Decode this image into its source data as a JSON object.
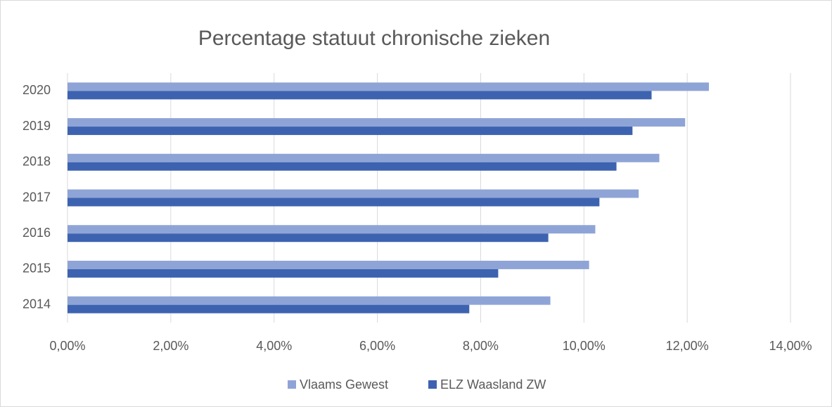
{
  "chart_data": {
    "type": "bar",
    "orientation": "horizontal",
    "title": "Percentage statuut chronische zieken",
    "categories": [
      "2014",
      "2015",
      "2016",
      "2017",
      "2018",
      "2019",
      "2020"
    ],
    "series": [
      {
        "name": "Vlaams Gewest",
        "color": "#8fa4d6",
        "values": [
          9.35,
          10.1,
          10.22,
          11.06,
          11.46,
          11.96,
          12.42
        ]
      },
      {
        "name": "ELZ Waasland ZW",
        "color": "#3d63b0",
        "values": [
          7.78,
          8.34,
          9.31,
          10.3,
          10.63,
          10.94,
          11.31
        ]
      }
    ],
    "xlim": [
      0,
      14
    ],
    "xticks": [
      {
        "value": 0,
        "label": "0,00%"
      },
      {
        "value": 2,
        "label": "2,00%"
      },
      {
        "value": 4,
        "label": "4,00%"
      },
      {
        "value": 6,
        "label": "6,00%"
      },
      {
        "value": 8,
        "label": "8,00%"
      },
      {
        "value": 10,
        "label": "10,00%"
      },
      {
        "value": 12,
        "label": "12,00%"
      },
      {
        "value": 14,
        "label": "14,00%"
      }
    ],
    "grid": true,
    "legend": "bottom"
  }
}
